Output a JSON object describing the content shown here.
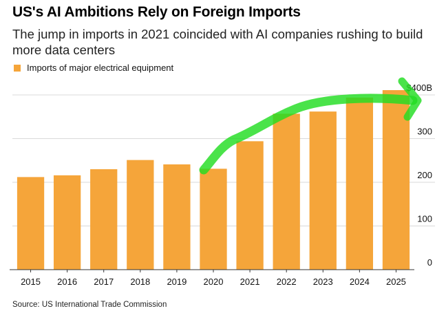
{
  "header": {
    "title": "US's AI Ambitions Rely on Foreign Imports",
    "subtitle": "The jump in imports in 2021 coincided with AI companies rushing to build more data centers"
  },
  "legend": {
    "label": "Imports of major electrical equipment",
    "color": "#f5a53a"
  },
  "footer": {
    "source": "Source: US International Trade Commission"
  },
  "chart_data": {
    "type": "bar",
    "categories": [
      "2015",
      "2016",
      "2017",
      "2018",
      "2019",
      "2020",
      "2021",
      "2022",
      "2023",
      "2024",
      "2025"
    ],
    "series": [
      {
        "name": "Imports of major electrical equipment",
        "values": [
          212,
          216,
          230,
          251,
          241,
          231,
          294,
          357,
          362,
          394,
          411
        ],
        "color": "#f5a53a"
      }
    ],
    "y_ticks": [
      0,
      100,
      200,
      300,
      400
    ],
    "y_tick_labels": [
      "0",
      "100",
      "200",
      "300",
      "$400B"
    ],
    "ylim": [
      0,
      400
    ],
    "y_axis_position": "right",
    "grid": true,
    "legend_position": "top-left",
    "annotation": {
      "type": "hand-drawn arrow",
      "color": "#22dd22",
      "from": "2020",
      "to": "2025"
    }
  }
}
